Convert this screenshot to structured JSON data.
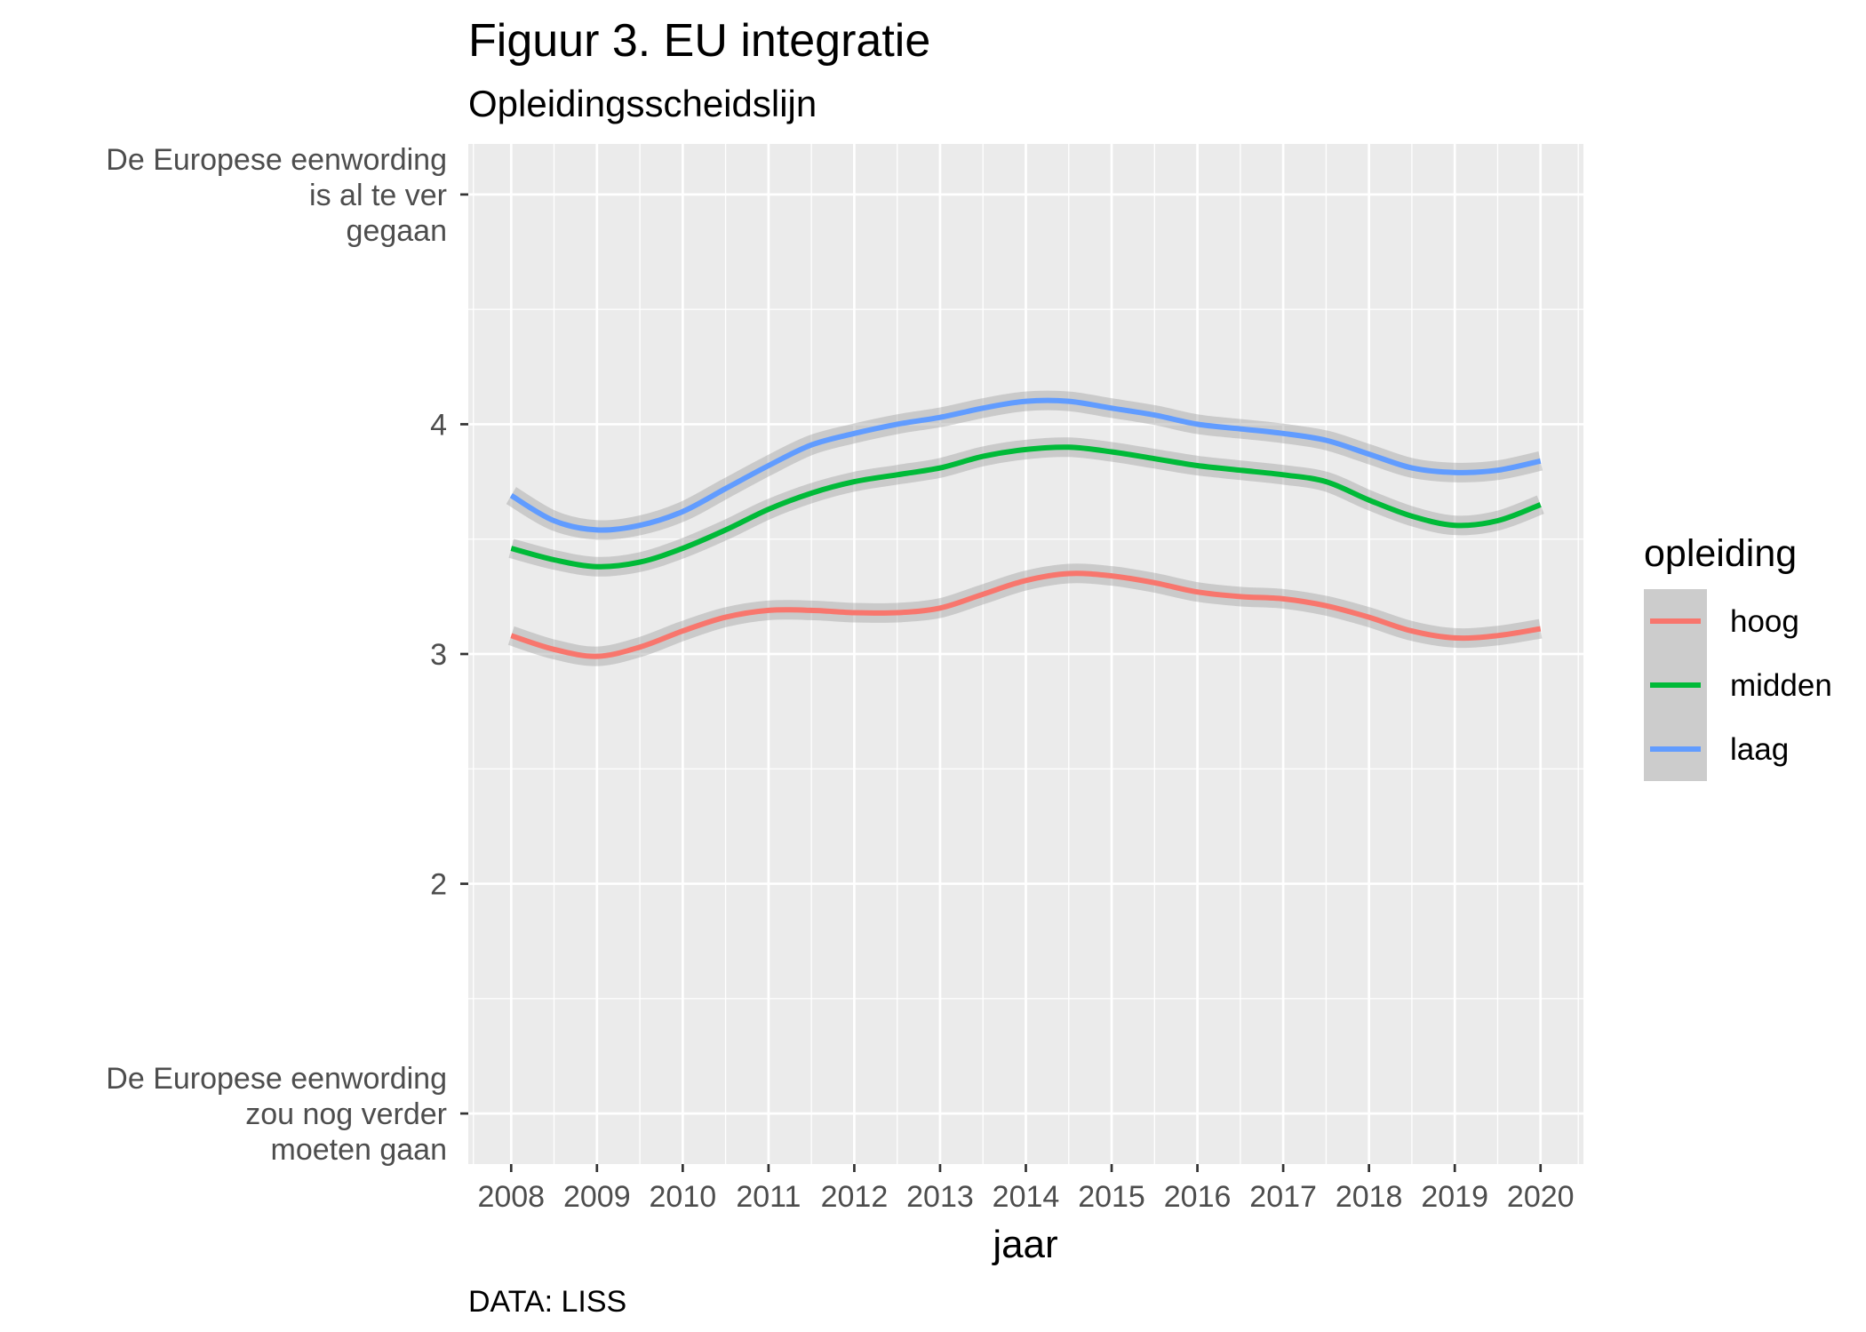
{
  "chart_data": {
    "type": "line",
    "title": "Figuur 3. EU integratie",
    "subtitle": "Opleidingsscheidslijn",
    "xlabel": "jaar",
    "ylabel": "",
    "caption": "DATA: LISS",
    "xlim": [
      2007.5,
      2020.5
    ],
    "ylim": [
      0.78,
      5.22
    ],
    "x_ticks": [
      2008,
      2009,
      2010,
      2011,
      2012,
      2013,
      2014,
      2015,
      2016,
      2017,
      2018,
      2019,
      2020
    ],
    "x_tick_labels": [
      "2008",
      "2009",
      "2010",
      "2011",
      "2012",
      "2013",
      "2014",
      "2015",
      "2016",
      "2017",
      "2018",
      "2019",
      "2020"
    ],
    "y_ticks": [
      {
        "value": 1,
        "lines": [
          "De Europese eenwording",
          "zou nog verder",
          "moeten gaan"
        ]
      },
      {
        "value": 2,
        "lines": [
          "2"
        ]
      },
      {
        "value": 3,
        "lines": [
          "3"
        ]
      },
      {
        "value": 4,
        "lines": [
          "4"
        ]
      },
      {
        "value": 5,
        "lines": [
          "De Europese eenwording",
          "is al te ver",
          "gegaan"
        ]
      }
    ],
    "grid": true,
    "legend_position": "right",
    "legend_title": "opleiding",
    "confidence_band": true,
    "x": [
      2008,
      2008.5,
      2009,
      2009.5,
      2010,
      2010.5,
      2011,
      2011.5,
      2012,
      2012.5,
      2013,
      2013.5,
      2014,
      2014.5,
      2015,
      2015.5,
      2016,
      2016.5,
      2017,
      2017.5,
      2018,
      2018.5,
      2019,
      2019.5,
      2020
    ],
    "series": [
      {
        "name": "hoog",
        "color": "#F8766D",
        "values": [
          3.08,
          3.02,
          2.99,
          3.03,
          3.1,
          3.16,
          3.19,
          3.19,
          3.18,
          3.18,
          3.2,
          3.26,
          3.32,
          3.35,
          3.34,
          3.31,
          3.27,
          3.25,
          3.24,
          3.21,
          3.16,
          3.1,
          3.07,
          3.08,
          3.11
        ]
      },
      {
        "name": "midden",
        "color": "#00BA38",
        "values": [
          3.46,
          3.41,
          3.38,
          3.4,
          3.46,
          3.54,
          3.63,
          3.7,
          3.75,
          3.78,
          3.81,
          3.86,
          3.89,
          3.9,
          3.88,
          3.85,
          3.82,
          3.8,
          3.78,
          3.75,
          3.67,
          3.6,
          3.56,
          3.58,
          3.65
        ]
      },
      {
        "name": "laag",
        "color": "#619CFF",
        "values": [
          3.69,
          3.58,
          3.54,
          3.56,
          3.62,
          3.72,
          3.82,
          3.91,
          3.96,
          4.0,
          4.03,
          4.07,
          4.1,
          4.1,
          4.07,
          4.04,
          4.0,
          3.98,
          3.96,
          3.93,
          3.87,
          3.81,
          3.79,
          3.8,
          3.84
        ]
      }
    ]
  }
}
